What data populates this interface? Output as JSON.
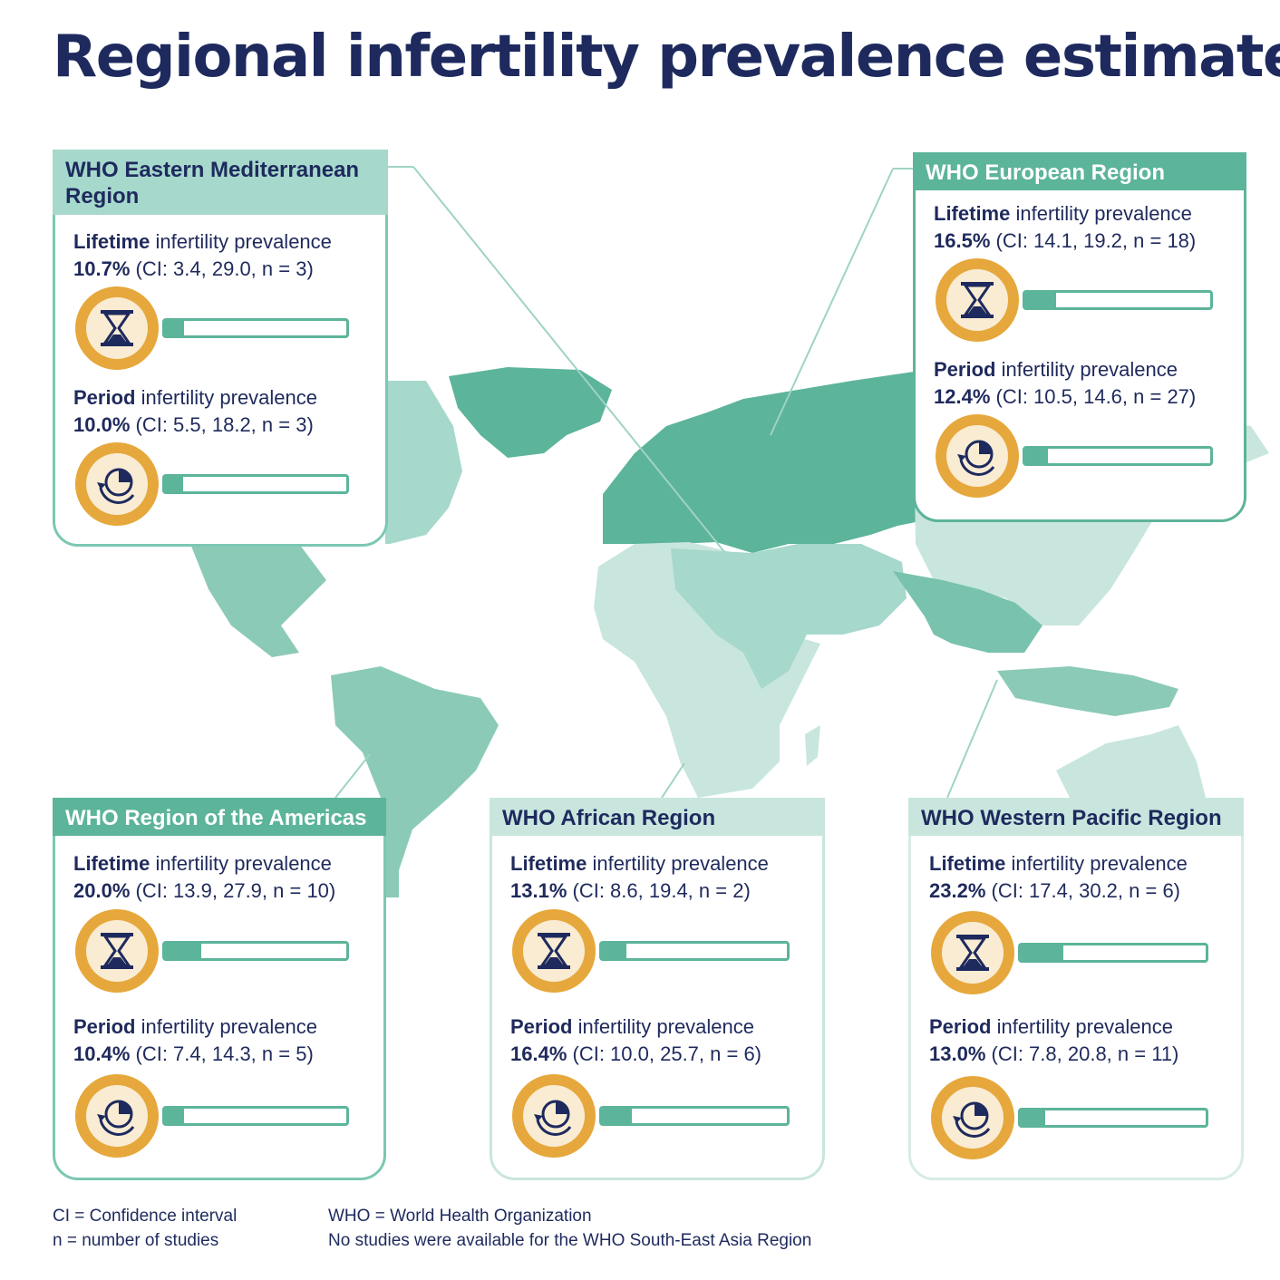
{
  "title": "Regional infertility prevalence estimates",
  "colors": {
    "navy": "#1e2a5e",
    "teal": "#5cb49a",
    "teal_light": "#a6d8cb",
    "mint": "#c8e6de",
    "gold": "#e6a83c",
    "cream": "#f9ecd3"
  },
  "labels": {
    "lifetime_word": "Lifetime",
    "period_word": "Period",
    "rest": " infertility prevalence"
  },
  "icons": {
    "lifetime": "hourglass-icon",
    "period": "clock-cycle-icon"
  },
  "regions": [
    {
      "name": "WHO Eastern Mediterranean Region",
      "lifetime": {
        "value": "10.7%",
        "ci": " (CI: 3.4, 29.0, n = 3)",
        "fraction": 0.107
      },
      "period": {
        "value": "10.0%",
        "ci": " (CI: 5.5, 18.2, n = 3)",
        "fraction": 0.1
      }
    },
    {
      "name": "WHO European Region",
      "lifetime": {
        "value": "16.5%",
        "ci": " (CI: 14.1, 19.2, n = 18)",
        "fraction": 0.165
      },
      "period": {
        "value": "12.4%",
        "ci": " (CI: 10.5, 14.6, n = 27)",
        "fraction": 0.124
      }
    },
    {
      "name": "WHO Region of the Americas",
      "lifetime": {
        "value": "20.0%",
        "ci": " (CI: 13.9, 27.9, n = 10)",
        "fraction": 0.2
      },
      "period": {
        "value": "10.4%",
        "ci": " (CI: 7.4, 14.3, n = 5)",
        "fraction": 0.104
      }
    },
    {
      "name": "WHO African Region",
      "lifetime": {
        "value": "13.1%",
        "ci": " (CI: 8.6, 19.4, n = 2)",
        "fraction": 0.131
      },
      "period": {
        "value": "16.4%",
        "ci": " (CI: 10.0, 25.7, n = 6)",
        "fraction": 0.164
      }
    },
    {
      "name": "WHO Western Pacific Region",
      "lifetime": {
        "value": "23.2%",
        "ci": " (CI: 17.4, 30.2, n = 6)",
        "fraction": 0.232
      },
      "period": {
        "value": "13.0%",
        "ci": " (CI: 7.8, 20.8, n = 11)",
        "fraction": 0.13
      }
    }
  ],
  "footnotes": {
    "ci": "CI = Confidence interval",
    "n": "n = number of studies",
    "who": "WHO = World Health Organization",
    "sea": "No studies were available for the WHO South-East Asia Region"
  }
}
